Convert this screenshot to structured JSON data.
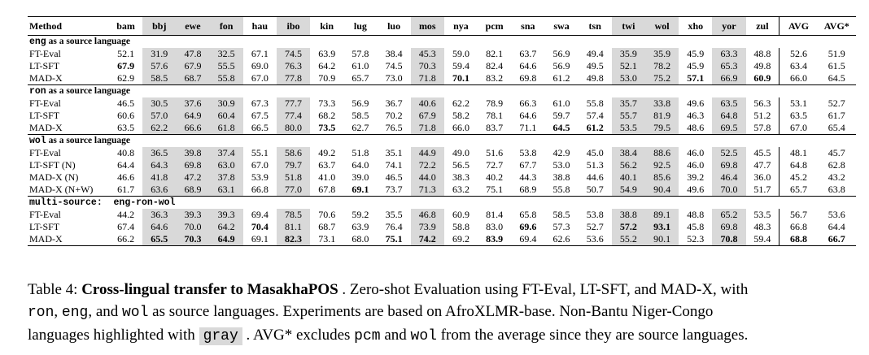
{
  "table": {
    "method_header": "Method",
    "columns": [
      "bam",
      "bbj",
      "ewe",
      "fon",
      "hau",
      "ibo",
      "kin",
      "lug",
      "luo",
      "mos",
      "nya",
      "pcm",
      "sna",
      "swa",
      "tsn",
      "twi",
      "wol",
      "xho",
      "yor",
      "zul",
      "AVG",
      "AVG*"
    ],
    "gray_columns": [
      "bbj",
      "ewe",
      "fon",
      "ibo",
      "mos",
      "twi",
      "wol",
      "yor"
    ],
    "groups": [
      {
        "title_code": "eng",
        "title_rest": " as a source language",
        "rows": [
          {
            "method": "FT-Eval",
            "values": [
              "52.1",
              "31.9",
              "47.8",
              "32.5",
              "67.1",
              "74.5",
              "63.9",
              "57.8",
              "38.4",
              "45.3",
              "59.0",
              "82.1",
              "63.7",
              "56.9",
              "49.4",
              "35.9",
              "35.9",
              "45.9",
              "63.3",
              "48.8",
              "52.6",
              "51.9"
            ],
            "bold": []
          },
          {
            "method": "LT-SFT",
            "values": [
              "67.9",
              "57.6",
              "67.9",
              "55.5",
              "69.0",
              "76.3",
              "64.2",
              "61.0",
              "74.5",
              "70.3",
              "59.4",
              "82.4",
              "64.6",
              "56.9",
              "49.5",
              "52.1",
              "78.2",
              "45.9",
              "65.3",
              "49.8",
              "63.4",
              "61.5"
            ],
            "bold": [
              0
            ]
          },
          {
            "method": "MAD-X",
            "values": [
              "62.9",
              "58.5",
              "68.7",
              "55.8",
              "67.0",
              "77.8",
              "70.9",
              "65.7",
              "73.0",
              "71.8",
              "70.1",
              "83.2",
              "69.8",
              "61.2",
              "49.8",
              "53.0",
              "75.2",
              "57.1",
              "66.9",
              "60.9",
              "66.0",
              "64.5"
            ],
            "bold": [
              10,
              17,
              19
            ]
          }
        ]
      },
      {
        "title_code": "ron",
        "title_rest": " as a source language",
        "rows": [
          {
            "method": "FT-Eval",
            "values": [
              "46.5",
              "30.5",
              "37.6",
              "30.9",
              "67.3",
              "77.7",
              "73.3",
              "56.9",
              "36.7",
              "40.6",
              "62.2",
              "78.9",
              "66.3",
              "61.0",
              "55.8",
              "35.7",
              "33.8",
              "49.6",
              "63.5",
              "56.3",
              "53.1",
              "52.7"
            ],
            "bold": []
          },
          {
            "method": "LT-SFT",
            "values": [
              "60.6",
              "57.0",
              "64.9",
              "60.4",
              "67.5",
              "77.4",
              "68.2",
              "58.5",
              "70.2",
              "67.9",
              "58.2",
              "78.1",
              "64.6",
              "59.7",
              "57.4",
              "55.7",
              "81.9",
              "46.3",
              "64.8",
              "51.2",
              "63.5",
              "61.7"
            ],
            "bold": []
          },
          {
            "method": "MAD-X",
            "values": [
              "63.5",
              "62.2",
              "66.6",
              "61.8",
              "66.5",
              "80.0",
              "73.5",
              "62.7",
              "76.5",
              "71.8",
              "66.0",
              "83.7",
              "71.1",
              "64.5",
              "61.2",
              "53.5",
              "79.5",
              "48.6",
              "69.5",
              "57.8",
              "67.0",
              "65.4"
            ],
            "bold": [
              6,
              13,
              14
            ]
          }
        ]
      },
      {
        "title_code": "wol",
        "title_rest": " as a source language",
        "rows": [
          {
            "method": "FT-Eval",
            "values": [
              "40.8",
              "36.5",
              "39.8",
              "37.4",
              "55.1",
              "58.6",
              "49.2",
              "51.8",
              "35.1",
              "44.9",
              "49.0",
              "51.6",
              "53.8",
              "42.9",
              "45.0",
              "38.4",
              "88.6",
              "46.0",
              "52.5",
              "45.5",
              "48.1",
              "45.7"
            ],
            "bold": []
          },
          {
            "method": "LT-SFT (N)",
            "values": [
              "64.4",
              "64.3",
              "69.8",
              "63.0",
              "67.0",
              "79.7",
              "63.7",
              "64.0",
              "74.1",
              "72.2",
              "56.5",
              "72.7",
              "67.7",
              "53.0",
              "51.3",
              "56.2",
              "92.5",
              "46.0",
              "69.8",
              "47.7",
              "64.8",
              "62.8"
            ],
            "bold": []
          },
          {
            "method": "MAD-X (N)",
            "values": [
              "46.6",
              "41.8",
              "47.2",
              "37.8",
              "53.9",
              "51.8",
              "41.0",
              "39.0",
              "46.5",
              "44.0",
              "38.3",
              "40.2",
              "44.3",
              "38.8",
              "44.6",
              "40.1",
              "85.6",
              "39.2",
              "46.4",
              "36.0",
              "45.2",
              "43.2"
            ],
            "bold": []
          },
          {
            "method": "MAD-X (N+W)",
            "values": [
              "61.7",
              "63.6",
              "68.9",
              "63.1",
              "66.8",
              "77.0",
              "67.8",
              "69.1",
              "73.7",
              "71.3",
              "63.2",
              "75.1",
              "68.9",
              "55.8",
              "50.7",
              "54.9",
              "90.4",
              "49.6",
              "70.0",
              "51.7",
              "65.7",
              "63.8"
            ],
            "bold": [
              7
            ]
          }
        ]
      },
      {
        "title_code": "multi-source:  eng-ron-wol",
        "title_rest": "",
        "rows": [
          {
            "method": "FT-Eval",
            "values": [
              "44.2",
              "36.3",
              "39.3",
              "39.3",
              "69.4",
              "78.5",
              "70.6",
              "59.2",
              "35.5",
              "46.8",
              "60.9",
              "81.4",
              "65.8",
              "58.5",
              "53.8",
              "38.8",
              "89.1",
              "48.8",
              "65.2",
              "53.5",
              "56.7",
              "53.6"
            ],
            "bold": []
          },
          {
            "method": "LT-SFT",
            "values": [
              "67.4",
              "64.6",
              "70.0",
              "64.2",
              "70.4",
              "81.1",
              "68.7",
              "63.9",
              "76.4",
              "73.9",
              "58.8",
              "83.0",
              "69.6",
              "57.3",
              "52.7",
              "57.2",
              "93.1",
              "45.8",
              "69.8",
              "48.3",
              "66.8",
              "64.4"
            ],
            "bold": [
              4,
              12,
              15,
              16
            ]
          },
          {
            "method": "MAD-X",
            "values": [
              "66.2",
              "65.5",
              "70.3",
              "64.9",
              "69.1",
              "82.3",
              "73.1",
              "68.0",
              "75.1",
              "74.2",
              "69.2",
              "83.9",
              "69.4",
              "62.6",
              "53.6",
              "55.2",
              "90.1",
              "52.3",
              "70.8",
              "59.4",
              "68.8",
              "66.7"
            ],
            "bold": [
              1,
              2,
              3,
              5,
              8,
              9,
              11,
              18,
              20,
              21
            ]
          }
        ]
      }
    ]
  },
  "caption": {
    "prefix": "Table 4: ",
    "title": "Cross-lingual transfer to MasakhaPOS",
    "s1": " . Zero-shot Evaluation using FT-Eval, LT-SFT, and MAD-X, with",
    "code_ron": "ron",
    "comma1": ", ",
    "code_eng": "eng",
    "and1": ", and ",
    "code_wol": "wol",
    "s2": " as source languages. Experiments are based on AfroXLMR-base. Non-Bantu Niger-Congo",
    "s3": "languages highlighted with ",
    "gray_word": "gray",
    "s4": " . AVG* excludes ",
    "code_pcm": "pcm",
    "and2": " and ",
    "code_wol2": "wol",
    "s5": " from the average since they are source languages."
  }
}
